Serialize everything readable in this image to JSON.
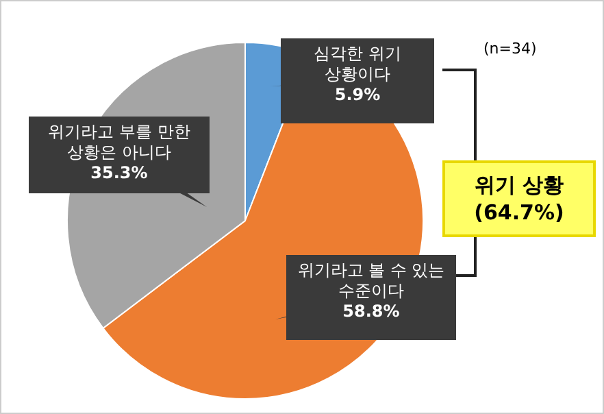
{
  "chart_data": {
    "type": "pie",
    "categories": [
      "심각한 위기 상황이다",
      "위기라고 볼 수 있는 수준이다",
      "위기라고 부를 만한 상황은 아니다"
    ],
    "values": [
      5.9,
      58.8,
      35.3
    ],
    "value_labels": [
      "5.9%",
      "58.8%",
      "35.3%"
    ],
    "colors": [
      "#5b9bd5",
      "#ed7d31",
      "#a5a5a5"
    ],
    "annotations": [
      "(n=34)",
      "위기 상황\n(64.7%)"
    ]
  }
}
